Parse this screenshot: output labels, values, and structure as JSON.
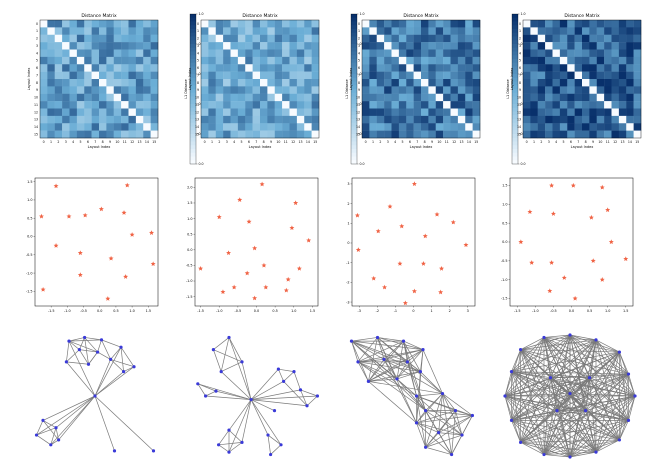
{
  "colors": {
    "cmap_low": "#f7fbff",
    "cmap_high": "#08306b",
    "star": "#f06446",
    "node": "#3a3ad8",
    "edge": "#7a7a7a",
    "axis": "#000000"
  },
  "heatmap_common": {
    "title": "Distance Matrix",
    "xlabel": "Layout Index",
    "ylabel": "Layout Index",
    "colorbar_label": "L1 Distance",
    "colorbar_ticks": [
      "0.0",
      "0.2",
      "0.4",
      "0.6",
      "0.8",
      "1.0"
    ],
    "n": 16
  },
  "chart_data": [
    {
      "type": "heatmap",
      "panel": 1,
      "title": "Distance Matrix",
      "xlabel": "Layout Index",
      "ylabel": "Layout Index",
      "x_ticks": [
        "0",
        "1",
        "2",
        "3",
        "4",
        "5",
        "6",
        "7",
        "8",
        "9",
        "10",
        "11",
        "12",
        "13",
        "14",
        "15"
      ],
      "y_ticks": [
        "0",
        "1",
        "2",
        "3",
        "4",
        "5",
        "6",
        "7",
        "8",
        "9",
        "10",
        "11",
        "12",
        "13",
        "14",
        "15"
      ],
      "value_range": [
        0,
        1
      ],
      "mean_offdiag": 0.55,
      "cmap": "Blues"
    },
    {
      "type": "heatmap",
      "panel": 2,
      "title": "Distance Matrix",
      "xlabel": "Layout Index",
      "ylabel": "Layout Index",
      "x_ticks": [
        "0",
        "1",
        "2",
        "3",
        "4",
        "5",
        "6",
        "7",
        "8",
        "9",
        "10",
        "11",
        "12",
        "13",
        "14",
        "15"
      ],
      "y_ticks": [
        "0",
        "1",
        "2",
        "3",
        "4",
        "5",
        "6",
        "7",
        "8",
        "9",
        "10",
        "11",
        "12",
        "13",
        "14",
        "15"
      ],
      "value_range": [
        0,
        1
      ],
      "mean_offdiag": 0.52,
      "cmap": "Blues"
    },
    {
      "type": "heatmap",
      "panel": 3,
      "title": "Distance Matrix",
      "xlabel": "Layout Index",
      "ylabel": "Layout Index",
      "x_ticks": [
        "0",
        "1",
        "2",
        "3",
        "4",
        "5",
        "6",
        "7",
        "8",
        "9",
        "10",
        "11",
        "12",
        "13",
        "14",
        "15"
      ],
      "y_ticks": [
        "0",
        "1",
        "2",
        "3",
        "4",
        "5",
        "6",
        "7",
        "8",
        "9",
        "10",
        "11",
        "12",
        "13",
        "14",
        "15"
      ],
      "value_range": [
        0,
        1
      ],
      "mean_offdiag": 0.72,
      "cmap": "Blues"
    },
    {
      "type": "heatmap",
      "panel": 4,
      "title": "Distance Matrix",
      "xlabel": "Layout Index",
      "ylabel": "Layout Index",
      "x_ticks": [
        "0",
        "1",
        "2",
        "3",
        "4",
        "5",
        "6",
        "7",
        "8",
        "9",
        "10",
        "11",
        "12",
        "13",
        "14",
        "15"
      ],
      "y_ticks": [
        "0",
        "1",
        "2",
        "3",
        "4",
        "5",
        "6",
        "7",
        "8",
        "9",
        "10",
        "11",
        "12",
        "13",
        "14",
        "15"
      ],
      "value_range": [
        0,
        1
      ],
      "mean_offdiag": 0.82,
      "cmap": "Blues"
    },
    {
      "type": "scatter",
      "panel": 1,
      "marker": "star",
      "xlim": [
        -2.0,
        1.8
      ],
      "ylim": [
        -1.9,
        1.6
      ],
      "x_ticks": [
        "-1.5",
        "-1.0",
        "-0.5",
        "0.0",
        "0.5",
        "1.0",
        "1.5"
      ],
      "y_ticks": [
        "-1.5",
        "-1.0",
        "-0.5",
        "0.0",
        "0.5",
        "1.0",
        "1.5"
      ],
      "points": [
        [
          -1.35,
          1.38
        ],
        [
          0.85,
          1.4
        ],
        [
          -1.8,
          0.55
        ],
        [
          -0.95,
          0.55
        ],
        [
          0.05,
          0.75
        ],
        [
          -0.45,
          0.58
        ],
        [
          0.75,
          0.65
        ],
        [
          -1.35,
          -0.25
        ],
        [
          1.0,
          0.05
        ],
        [
          1.6,
          0.1
        ],
        [
          -0.6,
          -0.45
        ],
        [
          0.35,
          -0.6
        ],
        [
          1.65,
          -0.75
        ],
        [
          -0.6,
          -1.05
        ],
        [
          0.8,
          -1.1
        ],
        [
          -1.75,
          -1.45
        ],
        [
          0.25,
          -1.7
        ]
      ]
    },
    {
      "type": "scatter",
      "panel": 2,
      "marker": "star",
      "xlim": [
        -1.65,
        1.65
      ],
      "ylim": [
        -1.8,
        2.3
      ],
      "x_ticks": [
        "-1.5",
        "-1.0",
        "-0.5",
        "0.0",
        "0.5",
        "1.0",
        "1.5"
      ],
      "y_ticks": [
        "-1.5",
        "-1.0",
        "-0.5",
        "0.0",
        "0.5",
        "1.0",
        "1.5",
        "2.0"
      ],
      "points": [
        [
          0.15,
          2.1
        ],
        [
          -1.0,
          1.05
        ],
        [
          -0.45,
          1.6
        ],
        [
          1.05,
          1.5
        ],
        [
          -0.2,
          0.9
        ],
        [
          0.95,
          0.7
        ],
        [
          1.4,
          0.3
        ],
        [
          -0.75,
          -0.1
        ],
        [
          -0.05,
          0.05
        ],
        [
          0.2,
          -0.5
        ],
        [
          1.15,
          -0.6
        ],
        [
          -1.5,
          -0.6
        ],
        [
          -0.25,
          -0.75
        ],
        [
          0.85,
          -0.95
        ],
        [
          -0.9,
          -1.35
        ],
        [
          -0.6,
          -1.2
        ],
        [
          -0.05,
          -1.55
        ],
        [
          0.8,
          -1.3
        ],
        [
          0.25,
          -1.2
        ]
      ]
    },
    {
      "type": "scatter",
      "panel": 3,
      "marker": "star",
      "xlim": [
        -3.4,
        3.4
      ],
      "ylim": [
        -3.2,
        3.3
      ],
      "x_ticks": [
        "-3",
        "-2",
        "-1",
        "0",
        "1",
        "2",
        "3"
      ],
      "y_ticks": [
        "-3",
        "-2",
        "-1",
        "0",
        "1",
        "2",
        "3"
      ],
      "points": [
        [
          0.05,
          3.0
        ],
        [
          -3.1,
          1.4
        ],
        [
          -1.3,
          1.85
        ],
        [
          1.3,
          1.45
        ],
        [
          2.2,
          1.05
        ],
        [
          -0.65,
          0.85
        ],
        [
          0.65,
          0.35
        ],
        [
          -1.95,
          0.6
        ],
        [
          -3.05,
          -0.35
        ],
        [
          2.9,
          -0.1
        ],
        [
          -0.75,
          -1.05
        ],
        [
          0.55,
          -1.05
        ],
        [
          1.55,
          -1.3
        ],
        [
          -2.2,
          -1.8
        ],
        [
          -1.6,
          -2.25
        ],
        [
          0.05,
          -2.45
        ],
        [
          1.5,
          -2.5
        ],
        [
          -0.45,
          -3.05
        ]
      ]
    },
    {
      "type": "scatter",
      "panel": 4,
      "marker": "star",
      "xlim": [
        -1.7,
        1.7
      ],
      "ylim": [
        -1.7,
        1.7
      ],
      "x_ticks": [
        "-1.5",
        "-1.0",
        "-0.5",
        "0.0",
        "0.5",
        "1.0",
        "1.5"
      ],
      "y_ticks": [
        "-1.5",
        "-1.0",
        "-0.5",
        "0.0",
        "0.5",
        "1.0",
        "1.5"
      ],
      "points": [
        [
          -0.55,
          1.5
        ],
        [
          0.05,
          1.5
        ],
        [
          0.85,
          1.45
        ],
        [
          -1.15,
          0.8
        ],
        [
          -0.5,
          0.75
        ],
        [
          1.0,
          0.85
        ],
        [
          0.55,
          0.65
        ],
        [
          -1.4,
          0.0
        ],
        [
          1.1,
          0.0
        ],
        [
          1.5,
          -0.45
        ],
        [
          -1.1,
          -0.55
        ],
        [
          -0.55,
          -0.55
        ],
        [
          0.6,
          -0.5
        ],
        [
          -0.2,
          -0.95
        ],
        [
          0.85,
          -1.0
        ],
        [
          -0.6,
          -1.3
        ],
        [
          0.1,
          -1.5
        ]
      ]
    },
    {
      "type": "network",
      "panel": 1,
      "nodes": [
        [
          0.3,
          0.05
        ],
        [
          0.42,
          0.02
        ],
        [
          0.55,
          0.04
        ],
        [
          0.7,
          0.1
        ],
        [
          0.38,
          0.12
        ],
        [
          0.52,
          0.14
        ],
        [
          0.62,
          0.2
        ],
        [
          0.28,
          0.22
        ],
        [
          0.45,
          0.24
        ],
        [
          0.72,
          0.3
        ],
        [
          0.8,
          0.26
        ],
        [
          0.1,
          0.7
        ],
        [
          0.05,
          0.82
        ],
        [
          0.2,
          0.76
        ],
        [
          0.16,
          0.9
        ],
        [
          0.22,
          0.86
        ],
        [
          0.65,
          0.95
        ],
        [
          0.95,
          0.95
        ],
        [
          0.5,
          0.5
        ]
      ],
      "edges": [
        [
          0,
          1
        ],
        [
          0,
          2
        ],
        [
          0,
          4
        ],
        [
          0,
          5
        ],
        [
          1,
          2
        ],
        [
          1,
          4
        ],
        [
          1,
          5
        ],
        [
          2,
          3
        ],
        [
          2,
          5
        ],
        [
          2,
          6
        ],
        [
          3,
          6
        ],
        [
          3,
          9
        ],
        [
          3,
          10
        ],
        [
          4,
          5
        ],
        [
          4,
          7
        ],
        [
          4,
          8
        ],
        [
          5,
          6
        ],
        [
          5,
          8
        ],
        [
          6,
          9
        ],
        [
          6,
          10
        ],
        [
          7,
          8
        ],
        [
          8,
          5
        ],
        [
          9,
          10
        ],
        [
          0,
          7
        ],
        [
          1,
          8
        ],
        [
          11,
          12
        ],
        [
          11,
          13
        ],
        [
          12,
          13
        ],
        [
          12,
          14
        ],
        [
          13,
          14
        ],
        [
          13,
          15
        ],
        [
          14,
          15
        ],
        [
          11,
          15
        ],
        [
          18,
          0
        ],
        [
          18,
          3
        ],
        [
          18,
          7
        ],
        [
          18,
          9
        ],
        [
          18,
          11
        ],
        [
          18,
          12
        ],
        [
          18,
          13
        ],
        [
          18,
          16
        ],
        [
          18,
          17
        ],
        [
          18,
          15
        ],
        [
          18,
          14
        ],
        [
          18,
          10
        ],
        [
          18,
          6
        ]
      ]
    },
    {
      "type": "network",
      "panel": 2,
      "nodes": [
        [
          0.3,
          0.02
        ],
        [
          0.18,
          0.12
        ],
        [
          0.4,
          0.22
        ],
        [
          0.24,
          0.3
        ],
        [
          0.06,
          0.4
        ],
        [
          0.12,
          0.5
        ],
        [
          0.2,
          0.46
        ],
        [
          0.68,
          0.28
        ],
        [
          0.8,
          0.3
        ],
        [
          0.72,
          0.38
        ],
        [
          0.85,
          0.45
        ],
        [
          0.98,
          0.5
        ],
        [
          0.9,
          0.58
        ],
        [
          0.65,
          0.62
        ],
        [
          0.3,
          0.78
        ],
        [
          0.22,
          0.9
        ],
        [
          0.3,
          0.96
        ],
        [
          0.4,
          0.88
        ],
        [
          0.6,
          0.82
        ],
        [
          0.7,
          0.9
        ],
        [
          0.62,
          0.98
        ],
        [
          0.47,
          0.53
        ]
      ],
      "edges": [
        [
          0,
          1
        ],
        [
          0,
          2
        ],
        [
          0,
          3
        ],
        [
          1,
          2
        ],
        [
          1,
          3
        ],
        [
          2,
          3
        ],
        [
          4,
          5
        ],
        [
          4,
          6
        ],
        [
          5,
          6
        ],
        [
          7,
          8
        ],
        [
          7,
          9
        ],
        [
          8,
          9
        ],
        [
          8,
          10
        ],
        [
          10,
          11
        ],
        [
          10,
          12
        ],
        [
          11,
          12
        ],
        [
          9,
          12
        ],
        [
          14,
          15
        ],
        [
          14,
          16
        ],
        [
          14,
          17
        ],
        [
          15,
          16
        ],
        [
          16,
          17
        ],
        [
          15,
          17
        ],
        [
          18,
          19
        ],
        [
          18,
          20
        ],
        [
          19,
          20
        ],
        [
          21,
          0
        ],
        [
          21,
          2
        ],
        [
          21,
          3
        ],
        [
          21,
          4
        ],
        [
          21,
          5
        ],
        [
          21,
          6
        ],
        [
          21,
          7
        ],
        [
          21,
          9
        ],
        [
          21,
          10
        ],
        [
          21,
          11
        ],
        [
          21,
          12
        ],
        [
          21,
          13
        ],
        [
          21,
          14
        ],
        [
          21,
          17
        ],
        [
          21,
          18
        ],
        [
          21,
          19
        ],
        [
          21,
          16
        ]
      ]
    },
    {
      "type": "network",
      "panel": 3,
      "nodes": [
        [
          0.05,
          0.05
        ],
        [
          0.25,
          0.02
        ],
        [
          0.45,
          0.05
        ],
        [
          0.6,
          0.12
        ],
        [
          0.1,
          0.22
        ],
        [
          0.3,
          0.2
        ],
        [
          0.48,
          0.22
        ],
        [
          0.18,
          0.38
        ],
        [
          0.4,
          0.36
        ],
        [
          0.58,
          0.3
        ],
        [
          0.55,
          0.5
        ],
        [
          0.75,
          0.48
        ],
        [
          0.62,
          0.62
        ],
        [
          0.85,
          0.62
        ],
        [
          0.98,
          0.66
        ],
        [
          0.55,
          0.72
        ],
        [
          0.72,
          0.8
        ],
        [
          0.9,
          0.82
        ],
        [
          0.62,
          0.92
        ],
        [
          0.82,
          0.98
        ]
      ],
      "edges": "dense-two-cluster"
    },
    {
      "type": "network",
      "panel": 4,
      "nodes": [
        [
          0.3,
          0.02
        ],
        [
          0.5,
          0.0
        ],
        [
          0.7,
          0.04
        ],
        [
          0.12,
          0.12
        ],
        [
          0.88,
          0.14
        ],
        [
          0.05,
          0.3
        ],
        [
          0.95,
          0.32
        ],
        [
          0.0,
          0.5
        ],
        [
          1.0,
          0.5
        ],
        [
          0.05,
          0.7
        ],
        [
          0.95,
          0.7
        ],
        [
          0.12,
          0.88
        ],
        [
          0.88,
          0.86
        ],
        [
          0.3,
          0.98
        ],
        [
          0.5,
          1.0
        ],
        [
          0.7,
          0.96
        ],
        [
          0.35,
          0.35
        ],
        [
          0.65,
          0.35
        ],
        [
          0.4,
          0.62
        ],
        [
          0.62,
          0.62
        ],
        [
          0.5,
          0.48
        ]
      ],
      "edges": "complete"
    }
  ]
}
